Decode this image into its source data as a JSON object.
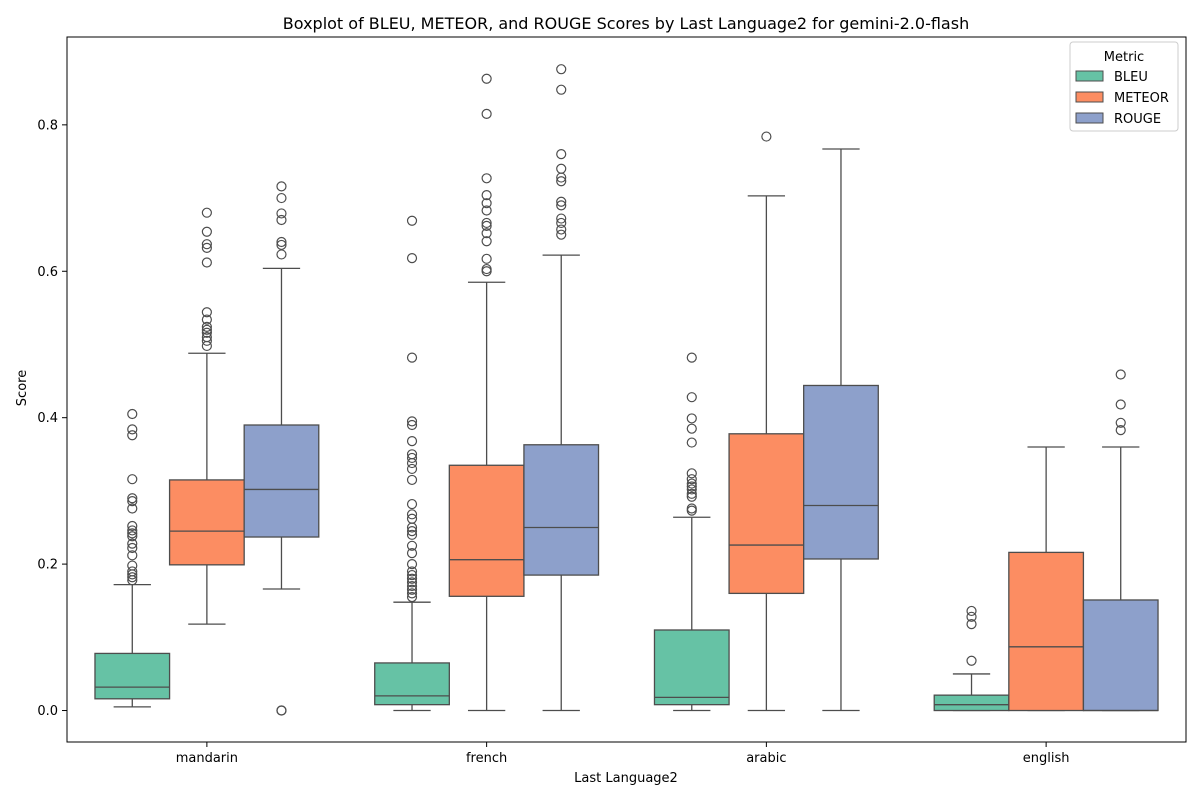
{
  "chart_data": {
    "type": "boxplot",
    "title": "Boxplot of BLEU, METEOR, and ROUGE Scores by Last Language2 for gemini-2.0-flash",
    "xlabel": "Last Language2",
    "ylabel": "Score",
    "ylim": [
      -0.043,
      0.92
    ],
    "yticks": [
      0.0,
      0.2,
      0.4,
      0.6,
      0.8
    ],
    "ytick_labels": [
      "0.0",
      "0.2",
      "0.4",
      "0.6",
      "0.8"
    ],
    "categories": [
      "mandarin",
      "french",
      "arabic",
      "english"
    ],
    "grid": false,
    "legend": {
      "title": "Metric",
      "placement": "top-right"
    },
    "series": [
      {
        "name": "BLEU",
        "color": "#66c2a5",
        "boxes": [
          {
            "whisker_low": 0.005,
            "q1": 0.016,
            "median": 0.032,
            "q3": 0.078,
            "whisker_high": 0.172,
            "outliers": [
              0.178,
              0.182,
              0.186,
              0.19,
              0.198,
              0.212,
              0.222,
              0.228,
              0.238,
              0.242,
              0.246,
              0.252,
              0.276,
              0.286,
              0.29,
              0.316,
              0.376,
              0.384,
              0.405
            ]
          },
          {
            "whisker_low": 0.0,
            "q1": 0.008,
            "median": 0.02,
            "q3": 0.065,
            "whisker_high": 0.148,
            "outliers": [
              0.155,
              0.16,
              0.165,
              0.17,
              0.175,
              0.18,
              0.185,
              0.19,
              0.2,
              0.215,
              0.225,
              0.24,
              0.245,
              0.25,
              0.262,
              0.268,
              0.282,
              0.315,
              0.33,
              0.338,
              0.345,
              0.35,
              0.368,
              0.39,
              0.395,
              0.482,
              0.618,
              0.669
            ]
          },
          {
            "whisker_low": 0.0,
            "q1": 0.008,
            "median": 0.018,
            "q3": 0.11,
            "whisker_high": 0.264,
            "outliers": [
              0.273,
              0.276,
              0.292,
              0.296,
              0.302,
              0.306,
              0.31,
              0.316,
              0.324,
              0.366,
              0.385,
              0.399,
              0.428,
              0.482
            ]
          },
          {
            "whisker_low": 0.0,
            "q1": 0.0,
            "median": 0.008,
            "q3": 0.021,
            "whisker_high": 0.05,
            "outliers": [
              0.068,
              0.118,
              0.128,
              0.136
            ]
          }
        ]
      },
      {
        "name": "METEOR",
        "color": "#fc8d62",
        "boxes": [
          {
            "whisker_low": 0.118,
            "q1": 0.199,
            "median": 0.245,
            "q3": 0.315,
            "whisker_high": 0.488,
            "outliers": [
              0.498,
              0.505,
              0.51,
              0.516,
              0.52,
              0.524,
              0.534,
              0.544,
              0.612,
              0.632,
              0.637,
              0.654,
              0.68
            ]
          },
          {
            "whisker_low": 0.0,
            "q1": 0.156,
            "median": 0.206,
            "q3": 0.335,
            "whisker_high": 0.585,
            "outliers": [
              0.6,
              0.603,
              0.617,
              0.641,
              0.652,
              0.662,
              0.666,
              0.683,
              0.693,
              0.704,
              0.727,
              0.815,
              0.863
            ]
          },
          {
            "whisker_low": 0.0,
            "q1": 0.16,
            "median": 0.226,
            "q3": 0.378,
            "whisker_high": 0.703,
            "outliers": [
              0.784
            ]
          },
          {
            "whisker_low": 0.0,
            "q1": 0.0,
            "median": 0.087,
            "q3": 0.216,
            "whisker_high": 0.36,
            "outliers": []
          }
        ]
      },
      {
        "name": "ROUGE",
        "color": "#8da0cb",
        "boxes": [
          {
            "whisker_low": 0.166,
            "q1": 0.237,
            "median": 0.302,
            "q3": 0.39,
            "whisker_high": 0.604,
            "outliers": [
              0.0,
              0.0,
              0.623,
              0.636,
              0.64,
              0.67,
              0.679,
              0.7,
              0.716
            ]
          },
          {
            "whisker_low": 0.0,
            "q1": 0.185,
            "median": 0.25,
            "q3": 0.363,
            "whisker_high": 0.622,
            "outliers": [
              0.65,
              0.657,
              0.666,
              0.672,
              0.69,
              0.695,
              0.723,
              0.728,
              0.74,
              0.76,
              0.848,
              0.876
            ]
          },
          {
            "whisker_low": 0.0,
            "q1": 0.207,
            "median": 0.28,
            "q3": 0.444,
            "whisker_high": 0.767,
            "outliers": []
          },
          {
            "whisker_low": 0.0,
            "q1": 0.0,
            "median": 0.0,
            "q3": 0.151,
            "whisker_high": 0.36,
            "outliers": [
              0.383,
              0.393,
              0.418,
              0.459
            ]
          }
        ]
      }
    ]
  }
}
